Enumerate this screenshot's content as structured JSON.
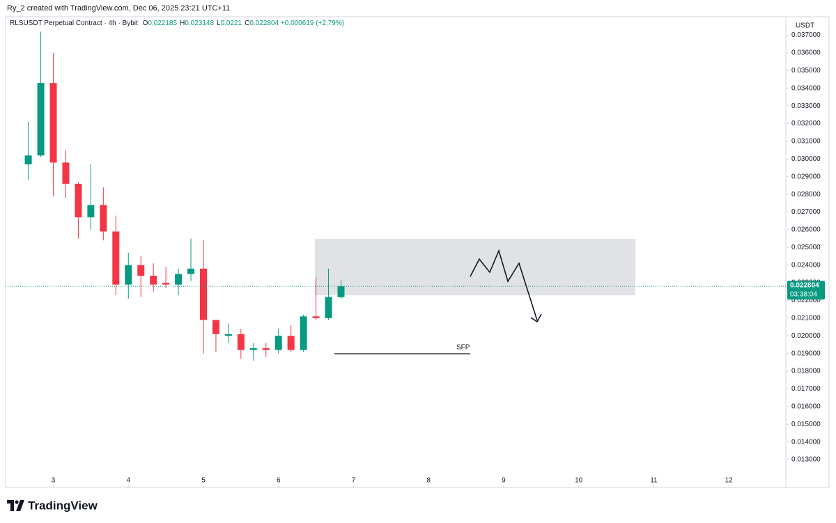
{
  "chart_data": {
    "type": "candlestick",
    "credit": "Ry_2 created with TradingView.com, Dec 06, 2025 23:21 UTC+11",
    "title": "RLSUSDT Perpetual Contract · 4h · Bybit",
    "legend_values": [
      {
        "label": "O",
        "value": 0.022185
      },
      {
        "label": "H",
        "value": 0.023148
      },
      {
        "label": "L",
        "value": 0.0221
      },
      {
        "label": "C",
        "value": 0.022804
      }
    ],
    "change": "+0.000619 (+2.79%)",
    "currency": "USDT",
    "countdown": "03:38:04",
    "annotation": "SFP",
    "brand": "TradingView",
    "up_color": "#089981",
    "down_color": "#f23645",
    "x": [
      2.6667,
      2.8333,
      3,
      3.1667,
      3.3333,
      3.5,
      3.6667,
      3.8333,
      4,
      4.1667,
      4.3333,
      4.5,
      4.6667,
      4.8333,
      5,
      5.1667,
      5.3333,
      5.5,
      5.6667,
      5.8333,
      6,
      6.1667,
      6.3333,
      6.5,
      6.6667,
      6.8333
    ],
    "open": [
      0.0297,
      0.0302,
      0.0343,
      0.0298,
      0.0286,
      0.0267,
      0.0274,
      0.0259,
      0.0229,
      0.024,
      0.0234,
      0.023,
      0.0229,
      0.0235,
      0.0238,
      0.0209,
      0.02,
      0.0201,
      0.0192,
      0.0193,
      0.0192,
      0.02,
      0.0192,
      0.0211,
      0.021,
      0.022185
    ],
    "high": [
      0.0321,
      0.0372,
      0.036,
      0.0305,
      0.0287,
      0.0297,
      0.0284,
      0.0268,
      0.0247,
      0.0245,
      0.0241,
      0.0239,
      0.0238,
      0.0255,
      0.0254,
      0.0209,
      0.0207,
      0.0204,
      0.0196,
      0.0196,
      0.0204,
      0.0206,
      0.0212,
      0.0233,
      0.0238,
      0.023148
    ],
    "low": [
      0.0288,
      0.0301,
      0.0279,
      0.0278,
      0.0255,
      0.026,
      0.0254,
      0.0223,
      0.0221,
      0.0222,
      0.0225,
      0.0227,
      0.0223,
      0.0231,
      0.019,
      0.0191,
      0.0196,
      0.0187,
      0.0186,
      0.0188,
      0.019,
      0.0191,
      0.0191,
      0.0209,
      0.0209,
      0.0221
    ],
    "close": [
      0.0302,
      0.0343,
      0.0298,
      0.0286,
      0.0267,
      0.0274,
      0.0259,
      0.0229,
      0.024,
      0.0234,
      0.0229,
      0.0229,
      0.0235,
      0.0238,
      0.0209,
      0.0201,
      0.0201,
      0.0192,
      0.0193,
      0.0192,
      0.02,
      0.0192,
      0.0211,
      0.021,
      0.0222,
      0.022804
    ],
    "xlim": [
      2.364,
      12.76
    ],
    "xticks": [
      3,
      4,
      5,
      6,
      7,
      8,
      9,
      10,
      11,
      12
    ],
    "ylim": [
      0.011425,
      0.03789
    ],
    "yticks": [
      {
        "value": 0.013,
        "label": "0.013000"
      },
      {
        "value": 0.014,
        "label": "0.014000"
      },
      {
        "value": 0.015,
        "label": "0.015000"
      },
      {
        "value": 0.016,
        "label": "0.016000"
      },
      {
        "value": 0.017,
        "label": "0.017000"
      },
      {
        "value": 0.018,
        "label": "0.018000"
      },
      {
        "value": 0.019,
        "label": "0.019000"
      },
      {
        "value": 0.02,
        "label": "0.020000"
      },
      {
        "value": 0.021,
        "label": "0.021000"
      },
      {
        "value": 0.022,
        "label": "0.022000"
      },
      {
        "value": 0.023,
        "label": "0.023000"
      },
      {
        "value": 0.024,
        "label": "0.024000"
      },
      {
        "value": 0.025,
        "label": "0.025000"
      },
      {
        "value": 0.026,
        "label": "0.026000"
      },
      {
        "value": 0.027,
        "label": "0.027000"
      },
      {
        "value": 0.028,
        "label": "0.028000"
      },
      {
        "value": 0.029,
        "label": "0.029000"
      },
      {
        "value": 0.03,
        "label": "0.030000"
      },
      {
        "value": 0.031,
        "label": "0.031000"
      },
      {
        "value": 0.032,
        "label": "0.032000"
      },
      {
        "value": 0.033,
        "label": "0.033000"
      },
      {
        "value": 0.034,
        "label": "0.034000"
      },
      {
        "value": 0.035,
        "label": "0.035000"
      },
      {
        "value": 0.036,
        "label": "0.036000"
      },
      {
        "value": 0.037,
        "label": "0.037000"
      }
    ]
  }
}
